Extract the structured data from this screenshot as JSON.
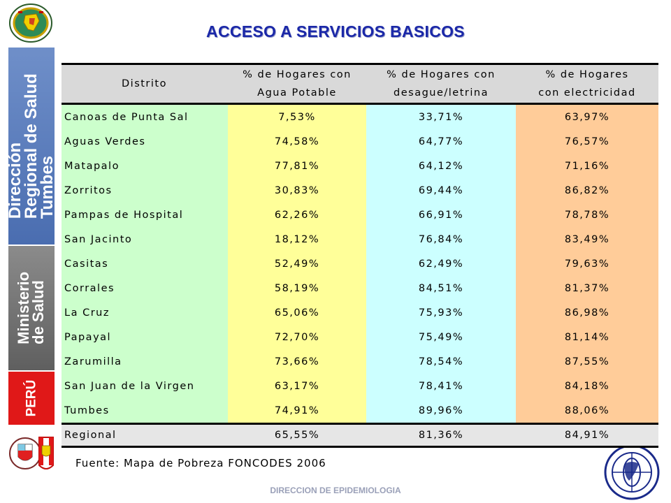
{
  "title": "ACCESO A SERVICIOS BASICOS",
  "sidebar": {
    "direccion": [
      "Dirección",
      "Regional de Salud",
      "Tumbes"
    ],
    "ministerio": [
      "Ministerio",
      "de Salud"
    ],
    "peru": "PERÚ"
  },
  "colors": {
    "title": "#1b28a8",
    "green": "#ccffcc",
    "yellow": "#ffff99",
    "cyan": "#ccffff",
    "orange": "#ffcc99",
    "header": "#d9d9d9",
    "band_blue": "#4a6db0",
    "band_gray": "#6f6f6f",
    "band_red": "#e01818"
  },
  "table": {
    "headers": {
      "distrito": "Distrito",
      "agua": [
        "% de Hogares con",
        "Agua Potable"
      ],
      "desague": [
        "% de Hogares con",
        "desague/letrina"
      ],
      "electricidad": [
        "% de Hogares",
        "con electricidad"
      ]
    },
    "rows": [
      {
        "distrito": "Canoas de Punta Sal",
        "agua": "7,53%",
        "desague": "33,71%",
        "electricidad": "63,97%"
      },
      {
        "distrito": "Aguas Verdes",
        "agua": "74,58%",
        "desague": "64,77%",
        "electricidad": "76,57%"
      },
      {
        "distrito": "Matapalo",
        "agua": "77,81%",
        "desague": "64,12%",
        "electricidad": "71,16%"
      },
      {
        "distrito": "Zorritos",
        "agua": "30,83%",
        "desague": "69,44%",
        "electricidad": "86,82%"
      },
      {
        "distrito": "Pampas de Hospital",
        "agua": "62,26%",
        "desague": "66,91%",
        "electricidad": "78,78%"
      },
      {
        "distrito": "San Jacinto",
        "agua": "18,12%",
        "desague": "76,84%",
        "electricidad": "83,49%"
      },
      {
        "distrito": "Casitas",
        "agua": "52,49%",
        "desague": "62,49%",
        "electricidad": "79,63%"
      },
      {
        "distrito": "Corrales",
        "agua": "58,19%",
        "desague": "84,51%",
        "electricidad": "81,37%"
      },
      {
        "distrito": "La Cruz",
        "agua": "65,06%",
        "desague": "75,93%",
        "electricidad": "86,98%"
      },
      {
        "distrito": "Papayal",
        "agua": "72,70%",
        "desague": "75,49%",
        "electricidad": "81,14%"
      },
      {
        "distrito": "Zarumilla",
        "agua": "73,66%",
        "desague": "78,54%",
        "electricidad": "87,55%"
      },
      {
        "distrito": "San Juan de la Virgen",
        "agua": "63,17%",
        "desague": "78,41%",
        "electricidad": "84,18%"
      },
      {
        "distrito": "Tumbes",
        "agua": "74,91%",
        "desague": "89,96%",
        "electricidad": "88,06%"
      }
    ],
    "regional": {
      "distrito": "Regional",
      "agua": "65,55%",
      "desague": "81,36%",
      "electricidad": "84,91%"
    }
  },
  "source": "Fuente: Mapa de Pobreza FONCODES 2006",
  "footer": "DIRECCION DE EPIDEMIOLOGIA",
  "icons": {
    "logo_top": "regional-emblem-icon",
    "logo_bottom_left": "peru-coat-of-arms-icon",
    "logo_bottom_right": "epidemiology-seal-icon"
  }
}
